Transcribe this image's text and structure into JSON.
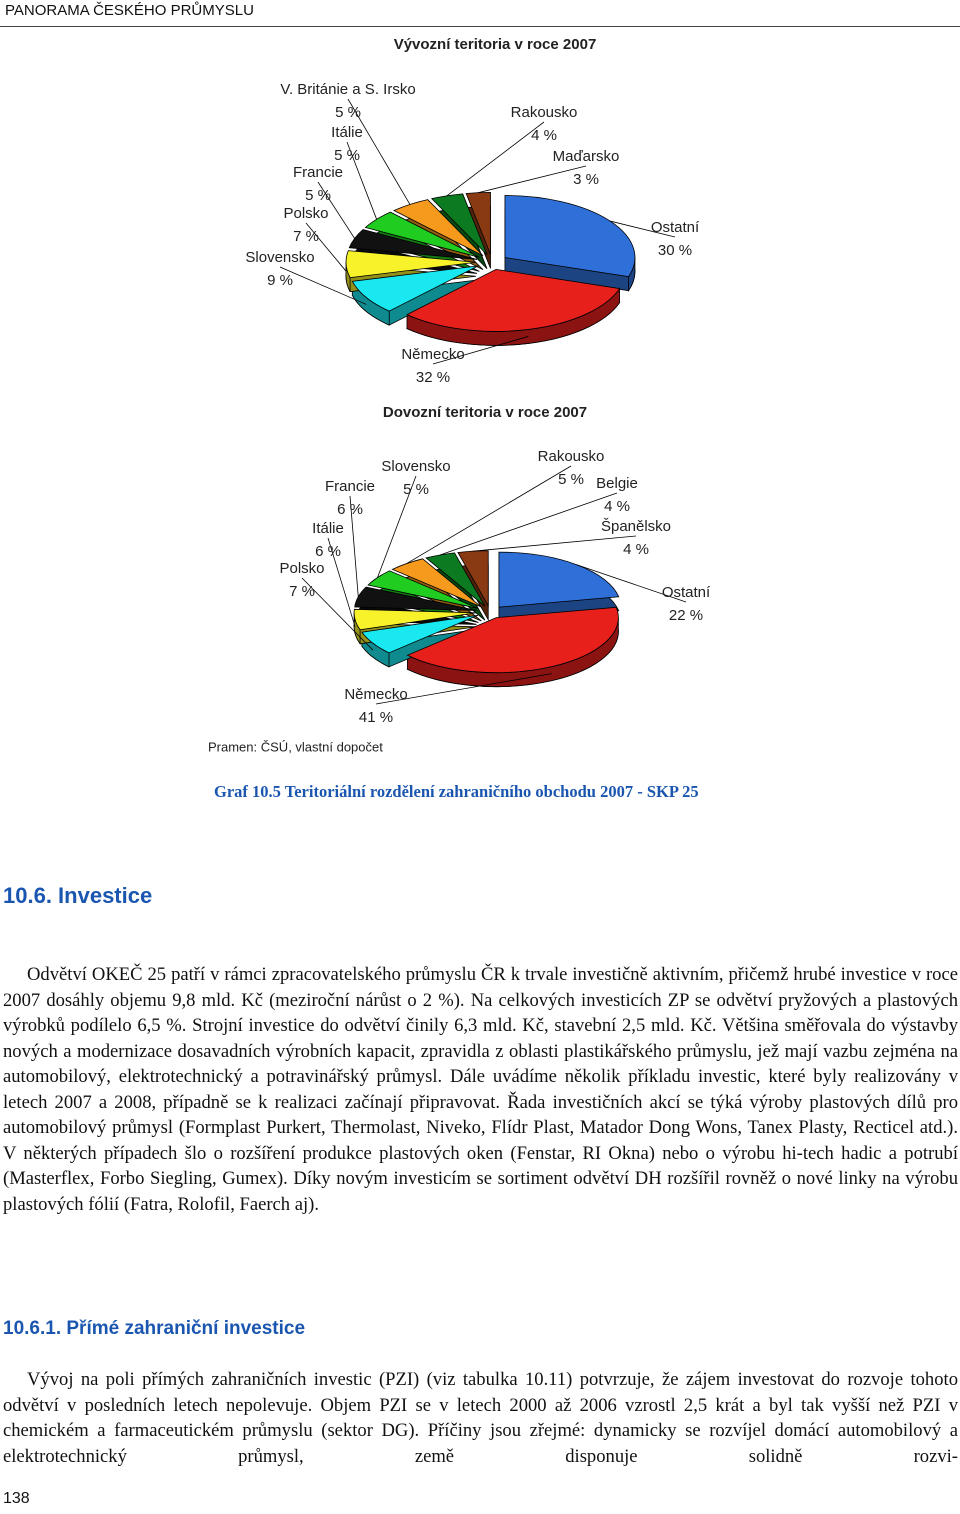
{
  "header": "PANORAMA ČESKÉHO PRŮMYSLU",
  "chart_data": [
    {
      "type": "pie",
      "title": "Vývozní teritoria v roce 2007",
      "categories": [
        "Ostatní",
        "Německo",
        "Slovensko",
        "Polsko",
        "Francie",
        "Itálie",
        "V. Británie a S. Irsko",
        "Rakousko",
        "Maďarsko"
      ],
      "values": [
        30,
        32,
        9,
        7,
        5,
        5,
        5,
        4,
        3
      ],
      "value_labels": [
        "30 %",
        "32 %",
        "9 %",
        "7 %",
        "5 %",
        "5 %",
        "5 %",
        "4 %",
        "3 %"
      ],
      "colors": [
        "#2f6fd8",
        "#e8201c",
        "#19e8f0",
        "#f7f22a",
        "#111111",
        "#1fcc1f",
        "#f59a1c",
        "#0b7a20",
        "#8a3a12"
      ]
    },
    {
      "type": "pie",
      "title": "Dovozní teritoria v roce 2007",
      "categories": [
        "Ostatní",
        "Německo",
        "Polsko",
        "Itálie",
        "Francie",
        "Slovensko",
        "Rakousko",
        "Belgie",
        "Španělsko"
      ],
      "values": [
        22,
        41,
        7,
        6,
        6,
        5,
        5,
        4,
        4
      ],
      "value_labels": [
        "22 %",
        "41 %",
        "7 %",
        "6 %",
        "6 %",
        "5 %",
        "5 %",
        "4 %",
        "4 %"
      ],
      "colors": [
        "#2f6fd8",
        "#e8201c",
        "#19e8f0",
        "#f7f22a",
        "#111111",
        "#1fcc1f",
        "#f59a1c",
        "#0b7a20",
        "#8a3a12"
      ]
    }
  ],
  "source": "Pramen: ČSÚ, vlastní dopočet",
  "caption": "Graf 10.5 Teritoriální rozdělení zahraničního obchodu 2007 - SKP 25",
  "section": {
    "heading": "10.6. Investice",
    "paragraph": "Odvětví OKEČ 25 patří v rámci zpracovatelského průmyslu ČR k trvale investičně aktivním, přičemž hrubé investice v roce 2007 dosáhly objemu 9,8 mld. Kč (meziroční nárůst o 2 %). Na celkových investicích ZP se odvětví pryžových a plastových výrobků podílelo 6,5 %. Strojní investice do odvětví činily 6,3 mld. Kč, stavební 2,5 mld. Kč. Většina směřovala do výstavby nových a modernizace dosavadních výrobních kapacit, zpravidla z oblasti plastikářského průmyslu, jež mají vazbu zejména na automobilový, elektrotechnický a potravinářský průmysl. Dále uvádíme několik příkladu investic, které byly realizovány v letech 2007 a 2008, případně se k realizaci začínají připravovat. Řada investičních akcí se týká výroby plastových dílů pro automobilový průmysl (Formplast Purkert, Thermolast, Niveko, Flídr Plast, Matador Dong Wons, Tanex Plasty, Recticel atd.). V některých případech šlo o rozšíření produkce plastových oken (Fenstar, RI Okna) nebo o výrobu hi-tech hadic a potrubí (Masterflex, Forbo Siegling, Gumex). Díky novým investicím se sortiment odvětví DH rozšířil rovněž o nové linky na výrobu plastových fólií (Fatra, Rolofil, Faerch aj)."
  },
  "subsection": {
    "heading": "10.6.1. Přímé zahraniční investice",
    "paragraph": "Vývoj na poli přímých zahraničních investic (PZI) (viz tabulka 10.11) potvrzuje, že zájem investovat do rozvoje tohoto odvětví v posledních letech nepolevuje. Objem PZI se v letech 2000 až 2006 vzrostl 2,5 krát a byl tak vyšší než PZI v chemickém a farmaceutickém průmyslu (sektor DG). Příčiny jsou zřejmé: dynamicky se rozvíjel domácí automobilový a elektrotechnický průmysl, země disponuje solidně rozvi-"
  },
  "page_number": "138"
}
